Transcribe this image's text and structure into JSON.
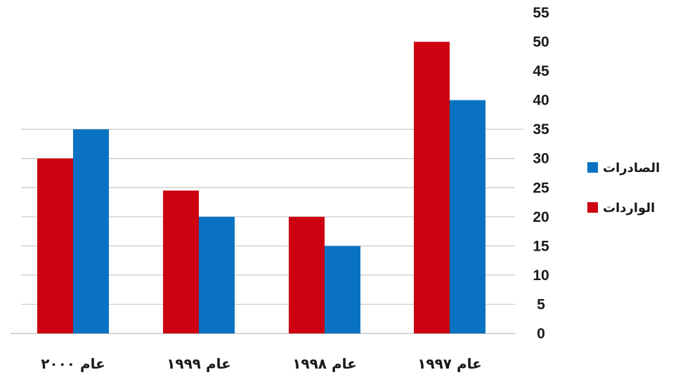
{
  "chart_data": {
    "type": "bar",
    "categories": [
      "عام ١٩٩٧",
      "عام ١٩٩٨",
      "عام ١٩٩٩",
      "عام ٢٠٠٠"
    ],
    "series": [
      {
        "name": "الواردات",
        "color": "#cc0010",
        "values": [
          50,
          20,
          24.5,
          30
        ]
      },
      {
        "name": "الصادرات",
        "color": "#0a72c2",
        "values": [
          40,
          15,
          20,
          35
        ]
      }
    ],
    "yticks": [
      "0",
      "5",
      "10",
      "15",
      "20",
      "25",
      "30",
      "35",
      "40",
      "45",
      "50",
      "55"
    ],
    "ylim": [
      0,
      55
    ],
    "grid": true,
    "legend_position": "right",
    "axis_side": "right",
    "category_order": "right-to-left"
  }
}
